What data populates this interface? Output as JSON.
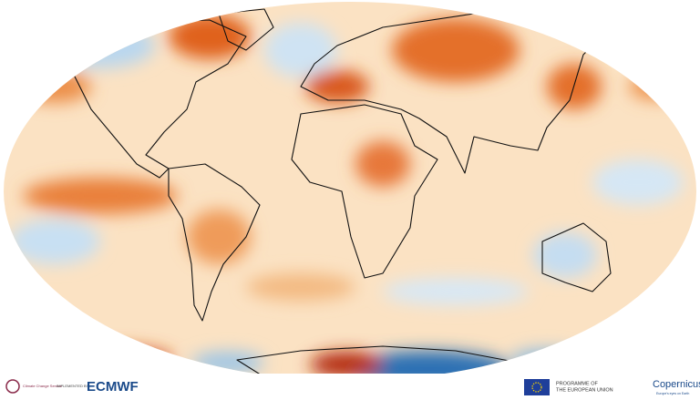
{
  "footer": {
    "c3s_label": "Climate Change Service",
    "implemented_by": "IMPLEMENTED BY",
    "ecmwf": "ECMWF",
    "eu_programme": [
      "PROGRAMME OF",
      "THE EUROPEAN UNION"
    ],
    "copernicus": "Copernicus",
    "copernicus_tagline": "Europe's eyes on Earth"
  }
}
